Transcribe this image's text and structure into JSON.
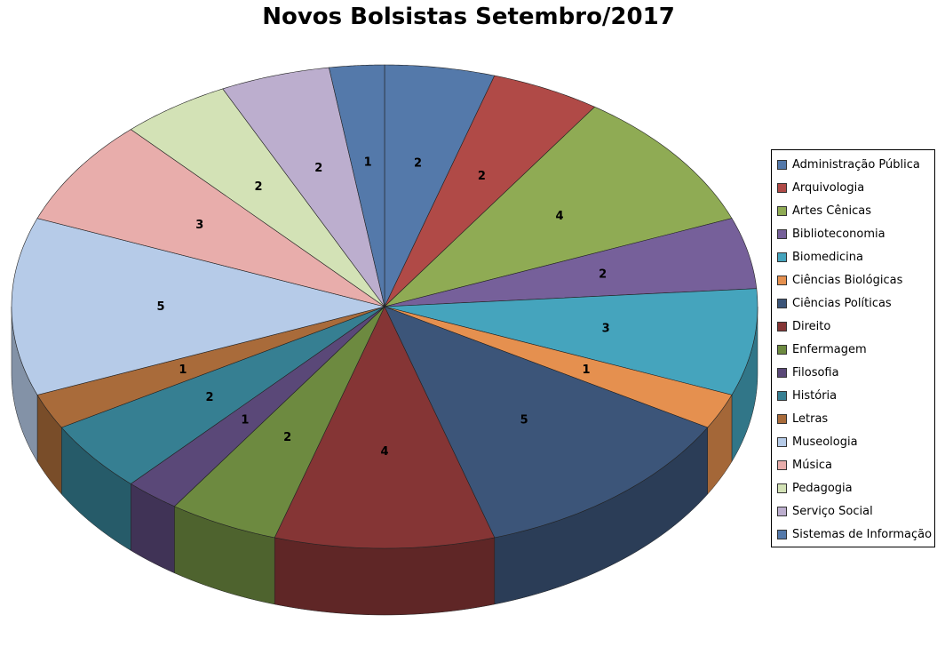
{
  "chart_data": {
    "type": "pie",
    "title": "Novos Bolsistas Setembro/2017",
    "three_d": true,
    "legend_position": "right",
    "categories": [
      "Administração Pública",
      "Arquivologia",
      "Artes Cênicas",
      "Biblioteconomia",
      "Biomedicina",
      "Ciências Biológicas",
      "Ciências Políticas",
      "Direito",
      "Enfermagem",
      "Filosofia",
      "História",
      "Letras",
      "Museologia",
      "Música",
      "Pedagogia",
      "Serviço Social",
      "Sistemas de Informação"
    ],
    "values": [
      2,
      2,
      4,
      2,
      3,
      1,
      5,
      4,
      2,
      1,
      2,
      1,
      5,
      3,
      2,
      2,
      1
    ],
    "colors": [
      "#5479aa",
      "#b04a47",
      "#8fab54",
      "#76609a",
      "#45a4bd",
      "#e5904f",
      "#3c5579",
      "#853535",
      "#6d8a40",
      "#5a4878",
      "#367f92",
      "#a96b3a",
      "#b6cbe8",
      "#e8adab",
      "#d3e2b6",
      "#bcaece",
      "#5479aa"
    ]
  }
}
